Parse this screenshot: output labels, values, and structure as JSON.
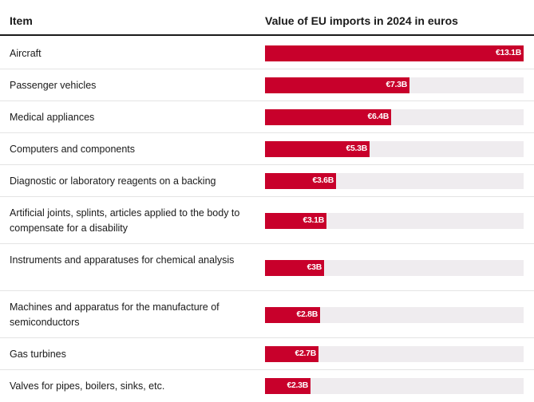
{
  "colors": {
    "bar": "#c8002b",
    "track": "#efecef"
  },
  "header": {
    "item_label": "Item",
    "value_label": "Value of EU imports in 2024 in euros"
  },
  "chart_data": {
    "type": "bar",
    "orientation": "horizontal",
    "title": "Value of EU imports in 2024 in euros",
    "xlim": [
      0,
      13.1
    ],
    "unit": "billion euros",
    "categories": [
      "Aircraft",
      "Passenger vehicles",
      "Medical appliances",
      "Computers and components",
      "Diagnostic or laboratory reagents on a backing",
      "Artificial joints, splints, articles applied to the body to compensate for a disability",
      "Instruments and apparatuses for chemical analysis",
      "Machines and apparatus for the manufacture of semiconductors",
      "Gas turbines",
      "Valves for pipes, boilers, sinks, etc."
    ],
    "values": [
      13.1,
      7.3,
      6.4,
      5.3,
      3.6,
      3.1,
      3.0,
      2.8,
      2.7,
      2.3
    ],
    "value_labels": [
      "€13.1B",
      "€7.3B",
      "€6.4B",
      "€5.3B",
      "€3.6B",
      "€3.1B",
      "€3B",
      "€2.8B",
      "€2.7B",
      "€2.3B"
    ]
  }
}
